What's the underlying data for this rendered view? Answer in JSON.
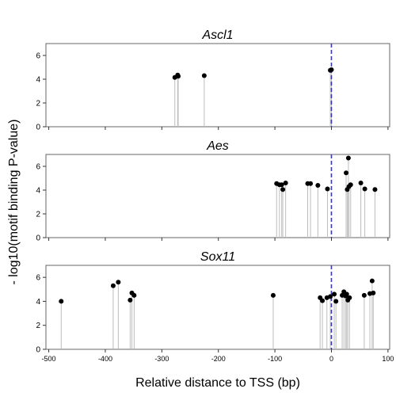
{
  "chart_data": {
    "type": "scatter",
    "style": "lollipop",
    "xlabel": "Relative distance to TSS (bp)",
    "ylabel": "- log10(motif binding P-value)",
    "xlim": [
      -505,
      103
    ],
    "x_ticks": [
      -500,
      -400,
      -300,
      -200,
      -100,
      0,
      100
    ],
    "ylim": [
      0,
      7
    ],
    "y_ticks": [
      0,
      2,
      4,
      6
    ],
    "reference_line": {
      "x": 0,
      "style": "dashed",
      "color": "#3b3ba8"
    },
    "grid": false,
    "point_color": "#000000",
    "stem_color": "#bdbdbd",
    "panels": [
      {
        "title": "Ascl1",
        "points": [
          {
            "x": -277,
            "y": 4.15
          },
          {
            "x": -272,
            "y": 4.35
          },
          {
            "x": -271,
            "y": 4.25
          },
          {
            "x": -225,
            "y": 4.3
          },
          {
            "x": -2,
            "y": 4.75
          },
          {
            "x": 0,
            "y": 4.8
          }
        ]
      },
      {
        "title": "Aes",
        "points": [
          {
            "x": -97,
            "y": 4.55
          },
          {
            "x": -92,
            "y": 4.45
          },
          {
            "x": -88,
            "y": 4.45
          },
          {
            "x": -86,
            "y": 4.05
          },
          {
            "x": -81,
            "y": 4.6
          },
          {
            "x": -42,
            "y": 4.55
          },
          {
            "x": -37,
            "y": 4.55
          },
          {
            "x": -24,
            "y": 4.4
          },
          {
            "x": -7,
            "y": 4.1
          },
          {
            "x": 26,
            "y": 5.45
          },
          {
            "x": 28,
            "y": 4.05
          },
          {
            "x": 30,
            "y": 6.7
          },
          {
            "x": 31,
            "y": 4.3
          },
          {
            "x": 34,
            "y": 4.45
          },
          {
            "x": 52,
            "y": 4.6
          },
          {
            "x": 59,
            "y": 4.1
          },
          {
            "x": 77,
            "y": 4.05
          }
        ]
      },
      {
        "title": "Sox11",
        "points": [
          {
            "x": -478,
            "y": 4.0
          },
          {
            "x": -386,
            "y": 5.3
          },
          {
            "x": -377,
            "y": 5.6
          },
          {
            "x": -356,
            "y": 4.1
          },
          {
            "x": -353,
            "y": 4.7
          },
          {
            "x": -349,
            "y": 4.5
          },
          {
            "x": -103,
            "y": 4.5
          },
          {
            "x": -20,
            "y": 4.3
          },
          {
            "x": -16,
            "y": 4.05
          },
          {
            "x": -8,
            "y": 4.3
          },
          {
            "x": -2,
            "y": 4.4
          },
          {
            "x": 5,
            "y": 4.6
          },
          {
            "x": 8,
            "y": 4.0
          },
          {
            "x": 19,
            "y": 4.5
          },
          {
            "x": 22,
            "y": 4.8
          },
          {
            "x": 25,
            "y": 4.45
          },
          {
            "x": 27,
            "y": 4.6
          },
          {
            "x": 29,
            "y": 4.1
          },
          {
            "x": 32,
            "y": 4.3
          },
          {
            "x": 58,
            "y": 4.5
          },
          {
            "x": 68,
            "y": 4.65
          },
          {
            "x": 72,
            "y": 5.7
          },
          {
            "x": 74,
            "y": 4.7
          }
        ]
      }
    ]
  }
}
